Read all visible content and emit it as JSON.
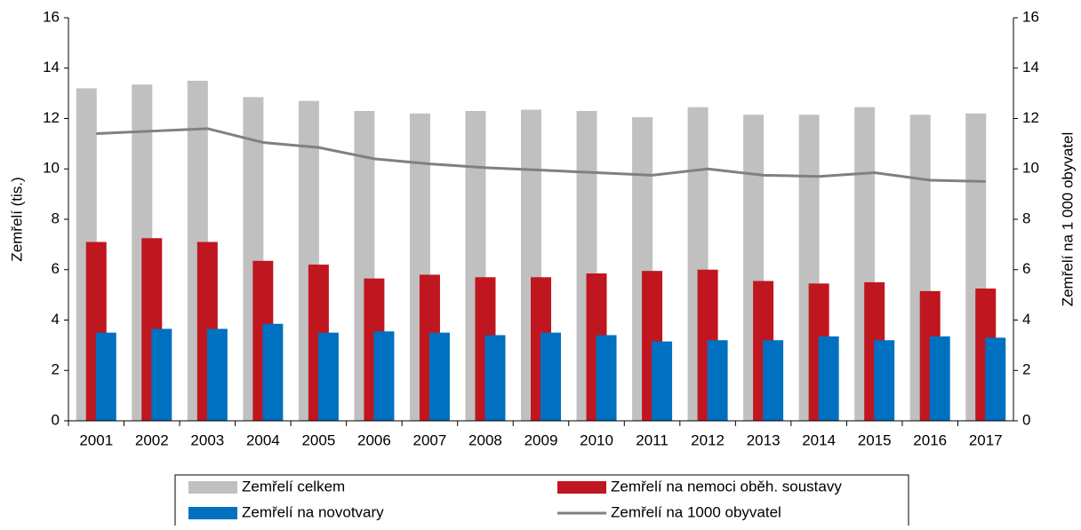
{
  "chart_data": {
    "type": "bar",
    "y_label": "Zemřelí (tis.)",
    "y2_label": "Zemřelí na 1 000 obyvatel",
    "categories": [
      "2001",
      "2002",
      "2003",
      "2004",
      "2005",
      "2006",
      "2007",
      "2008",
      "2009",
      "2010",
      "2011",
      "2012",
      "2013",
      "2014",
      "2015",
      "2016",
      "2017"
    ],
    "series": [
      {
        "name": "Zemřelí celkem",
        "type": "bar",
        "color": "#c0c0c0",
        "values": [
          13.2,
          13.35,
          13.5,
          12.85,
          12.7,
          12.3,
          12.2,
          12.3,
          12.35,
          12.3,
          12.05,
          12.45,
          12.15,
          12.15,
          12.45,
          12.15,
          12.2
        ]
      },
      {
        "name": "Zemřelí na nemoci oběh. soustavy",
        "type": "bar",
        "color": "#c0161f",
        "values": [
          7.1,
          7.25,
          7.1,
          6.35,
          6.2,
          5.65,
          5.8,
          5.7,
          5.7,
          5.85,
          5.95,
          6.0,
          5.55,
          5.45,
          5.5,
          5.15,
          5.25
        ]
      },
      {
        "name": "Zemřelí na novotvary",
        "type": "bar",
        "color": "#0070c0",
        "values": [
          3.5,
          3.65,
          3.65,
          3.85,
          3.5,
          3.55,
          3.5,
          3.4,
          3.5,
          3.4,
          3.15,
          3.2,
          3.2,
          3.35,
          3.2,
          3.35,
          3.3
        ]
      },
      {
        "name": "Zemřelí na 1000 obyvatel",
        "type": "line",
        "axis": "y2",
        "color": "#808080",
        "values": [
          11.4,
          11.5,
          11.6,
          11.05,
          10.85,
          10.4,
          10.2,
          10.05,
          9.95,
          9.85,
          9.75,
          10.0,
          9.75,
          9.7,
          9.85,
          9.55,
          9.5
        ]
      }
    ],
    "ylim": [
      0,
      16
    ],
    "yticks": [
      0,
      2,
      4,
      6,
      8,
      10,
      12,
      14,
      16
    ],
    "y2lim": [
      0,
      16
    ],
    "y2ticks": [
      0,
      2,
      4,
      6,
      8,
      10,
      12,
      14,
      16
    ],
    "grid": false
  }
}
